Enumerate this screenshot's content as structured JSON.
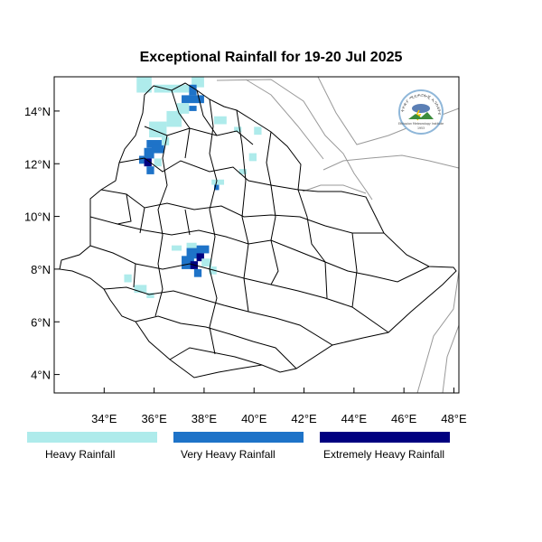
{
  "title": "Exceptional Rainfall for 19-20 Jul 2025",
  "chart_data": {
    "type": "heatmap",
    "title": "Exceptional Rainfall for 19-20 Jul 2025",
    "xlim": [
      32.0,
      48.2
    ],
    "ylim": [
      3.3,
      15.3
    ],
    "x_ticks": [
      {
        "value": 34,
        "label": "34°E"
      },
      {
        "value": 36,
        "label": "36°E"
      },
      {
        "value": 38,
        "label": "38°E"
      },
      {
        "value": 40,
        "label": "40°E"
      },
      {
        "value": 42,
        "label": "42°E"
      },
      {
        "value": 44,
        "label": "44°E"
      },
      {
        "value": 46,
        "label": "46°E"
      },
      {
        "value": 48,
        "label": "48°E"
      }
    ],
    "y_ticks": [
      {
        "value": 4,
        "label": "4°N"
      },
      {
        "value": 6,
        "label": "6°N"
      },
      {
        "value": 8,
        "label": "8°N"
      },
      {
        "value": 10,
        "label": "10°N"
      },
      {
        "value": 12,
        "label": "12°N"
      },
      {
        "value": 14,
        "label": "14°N"
      }
    ],
    "categories": [
      {
        "name": "Heavy Rainfall",
        "color": "#aeebeb"
      },
      {
        "name": "Very Heavy Rainfall",
        "color": "#1e73c8"
      },
      {
        "name": "Extremely Heavy Rainfall",
        "color": "#000080"
      }
    ],
    "cells": [
      {
        "lon": 35.3,
        "lat": 14.7,
        "w": 0.6,
        "h": 0.7,
        "level": 0
      },
      {
        "lon": 36.0,
        "lat": 14.7,
        "w": 1.4,
        "h": 0.3,
        "level": 0
      },
      {
        "lon": 37.5,
        "lat": 14.9,
        "w": 0.5,
        "h": 0.4,
        "level": 0
      },
      {
        "lon": 37.4,
        "lat": 14.6,
        "w": 0.3,
        "h": 0.4,
        "level": 1
      },
      {
        "lon": 37.1,
        "lat": 14.3,
        "w": 0.9,
        "h": 0.3,
        "level": 1
      },
      {
        "lon": 37.4,
        "lat": 14.0,
        "w": 0.3,
        "h": 0.2,
        "level": 1
      },
      {
        "lon": 36.9,
        "lat": 13.9,
        "w": 0.5,
        "h": 0.4,
        "level": 0
      },
      {
        "lon": 36.5,
        "lat": 13.4,
        "w": 0.6,
        "h": 0.6,
        "level": 0
      },
      {
        "lon": 35.8,
        "lat": 13.0,
        "w": 0.7,
        "h": 0.6,
        "level": 0
      },
      {
        "lon": 36.3,
        "lat": 12.7,
        "w": 0.3,
        "h": 0.3,
        "level": 0
      },
      {
        "lon": 35.7,
        "lat": 12.6,
        "w": 0.6,
        "h": 0.3,
        "level": 1
      },
      {
        "lon": 35.9,
        "lat": 12.4,
        "w": 0.5,
        "h": 0.3,
        "level": 1
      },
      {
        "lon": 35.6,
        "lat": 12.2,
        "w": 0.4,
        "h": 0.4,
        "level": 1
      },
      {
        "lon": 35.6,
        "lat": 11.9,
        "w": 0.3,
        "h": 0.3,
        "level": 2
      },
      {
        "lon": 35.4,
        "lat": 12.0,
        "w": 0.2,
        "h": 0.3,
        "level": 1
      },
      {
        "lon": 35.7,
        "lat": 11.6,
        "w": 0.3,
        "h": 0.3,
        "level": 1
      },
      {
        "lon": 36.0,
        "lat": 11.9,
        "w": 0.3,
        "h": 0.3,
        "level": 0
      },
      {
        "lon": 38.4,
        "lat": 13.5,
        "w": 0.5,
        "h": 0.3,
        "level": 0
      },
      {
        "lon": 39.2,
        "lat": 13.2,
        "w": 0.3,
        "h": 0.2,
        "level": 0
      },
      {
        "lon": 40.0,
        "lat": 13.1,
        "w": 0.3,
        "h": 0.3,
        "level": 0
      },
      {
        "lon": 39.8,
        "lat": 12.1,
        "w": 0.3,
        "h": 0.3,
        "level": 0
      },
      {
        "lon": 38.3,
        "lat": 11.2,
        "w": 0.5,
        "h": 0.2,
        "level": 0
      },
      {
        "lon": 38.4,
        "lat": 11.0,
        "w": 0.2,
        "h": 0.2,
        "level": 1
      },
      {
        "lon": 39.4,
        "lat": 11.6,
        "w": 0.3,
        "h": 0.2,
        "level": 0
      },
      {
        "lon": 37.3,
        "lat": 8.7,
        "w": 0.4,
        "h": 0.3,
        "level": 0
      },
      {
        "lon": 37.7,
        "lat": 8.6,
        "w": 0.5,
        "h": 0.3,
        "level": 1
      },
      {
        "lon": 37.3,
        "lat": 8.4,
        "w": 0.6,
        "h": 0.4,
        "level": 1
      },
      {
        "lon": 37.1,
        "lat": 8.0,
        "w": 0.5,
        "h": 0.5,
        "level": 1
      },
      {
        "lon": 37.7,
        "lat": 8.3,
        "w": 0.3,
        "h": 0.3,
        "level": 2
      },
      {
        "lon": 37.45,
        "lat": 8.0,
        "w": 0.3,
        "h": 0.3,
        "level": 2
      },
      {
        "lon": 37.6,
        "lat": 7.7,
        "w": 0.3,
        "h": 0.3,
        "level": 1
      },
      {
        "lon": 37.9,
        "lat": 8.1,
        "w": 0.4,
        "h": 0.3,
        "level": 0
      },
      {
        "lon": 38.2,
        "lat": 7.8,
        "w": 0.3,
        "h": 0.3,
        "level": 0
      },
      {
        "lon": 36.7,
        "lat": 8.7,
        "w": 0.4,
        "h": 0.2,
        "level": 0
      },
      {
        "lon": 35.2,
        "lat": 7.1,
        "w": 0.5,
        "h": 0.3,
        "level": 0
      },
      {
        "lon": 35.7,
        "lat": 6.9,
        "w": 0.3,
        "h": 0.2,
        "level": 0
      },
      {
        "lon": 34.8,
        "lat": 7.5,
        "w": 0.3,
        "h": 0.3,
        "level": 0
      }
    ]
  },
  "legend": [
    {
      "label": "Heavy Rainfall",
      "color": "#aeebeb"
    },
    {
      "label": "Very Heavy Rainfall",
      "color": "#1e73c8"
    },
    {
      "label": "Extremely Heavy Rainfall",
      "color": "#000080"
    }
  ],
  "logo": {
    "arc_text": "የኢትዮጵያ ሚቲዎሮሎጂ ኢንስቲትዩት",
    "subtitle": "Ethiopian Meteorology Institute",
    "year": "1953",
    "icon": "ethiopian-meteorology-institute-logo"
  }
}
